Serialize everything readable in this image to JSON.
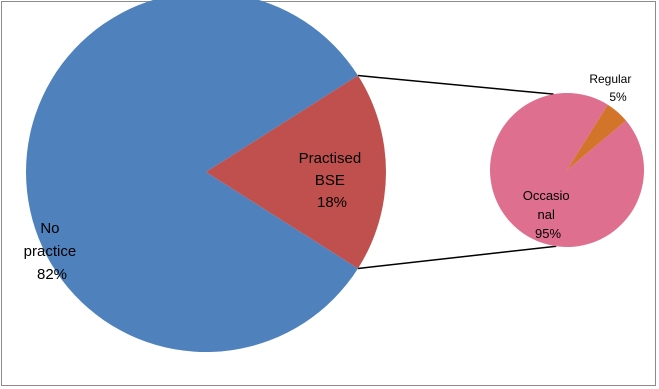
{
  "chart_data": {
    "type": "bar-of-pie",
    "main_pie": {
      "slices": [
        {
          "label_lines": [
            "No",
            "practice"
          ],
          "percent_label": "82%",
          "value": 82,
          "color": "#4f81bd"
        },
        {
          "label_lines": [
            "Practised",
            "BSE"
          ],
          "percent_label": "18%",
          "value": 18,
          "color": "#c0504d"
        }
      ]
    },
    "secondary_pie": {
      "breakdown_of": "Practised BSE",
      "slices": [
        {
          "label_lines": [
            "Occasio",
            "nal"
          ],
          "percent_label": "95%",
          "value": 95,
          "color": "#de6f8e"
        },
        {
          "label_lines": [
            "Regular"
          ],
          "percent_label": "5%",
          "value": 5,
          "color": "#d2752b"
        }
      ]
    },
    "connector_color": "#000000"
  }
}
